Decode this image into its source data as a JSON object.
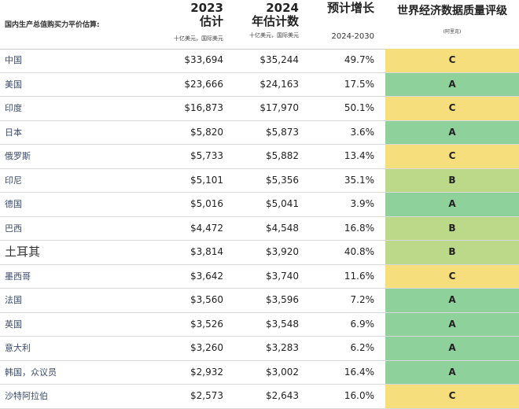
{
  "header": {
    "country_label": "国内生产总值购买力平价估算:",
    "col2023_year": "2023",
    "col2023_title": "估计",
    "col2023_unit": "十亿美元，国际美元",
    "col2024_year": "2024",
    "col2024_title": "年估计数",
    "col2024_unit": "十亿美元，国际美元",
    "growth_title": "预计增长",
    "growth_range": "2024-2030",
    "rating_title": "世界经济数据质量评级",
    "rating_note": "(阿里克)"
  },
  "colors": {
    "C": "#f6de7c",
    "A": "#8fd19b",
    "B": "#bcd98a"
  },
  "rows": [
    {
      "name": "中国",
      "v2023": "$33,694",
      "v2024": "$35,244",
      "growth": "49.7%",
      "grade": "C"
    },
    {
      "name": "美国",
      "v2023": "$23,666",
      "v2024": "$24,163",
      "growth": "17.5%",
      "grade": "A"
    },
    {
      "name": "印度",
      "v2023": "$16,873",
      "v2024": "$17,970",
      "growth": "50.1%",
      "grade": "C"
    },
    {
      "name": "日本",
      "v2023": "$5,820",
      "v2024": "$5,873",
      "growth": "3.6%",
      "grade": "A"
    },
    {
      "name": "俄罗斯",
      "v2023": "$5,733",
      "v2024": "$5,882",
      "growth": "13.4%",
      "grade": "C"
    },
    {
      "name": "印尼",
      "v2023": "$5,101",
      "v2024": "$5,356",
      "growth": "35.1%",
      "grade": "B"
    },
    {
      "name": "德国",
      "v2023": "$5,016",
      "v2024": "$5,041",
      "growth": "3.9%",
      "grade": "A"
    },
    {
      "name": "巴西",
      "v2023": "$4,472",
      "v2024": "$4,548",
      "growth": "16.8%",
      "grade": "B"
    },
    {
      "name": "土耳其",
      "v2023": "$3,814",
      "v2024": "$3,920",
      "growth": "40.8%",
      "grade": "B"
    },
    {
      "name": "墨西哥",
      "v2023": "$3,642",
      "v2024": "$3,740",
      "growth": "11.6%",
      "grade": "C"
    },
    {
      "name": "法国",
      "v2023": "$3,560",
      "v2024": "$3,596",
      "growth": "7.2%",
      "grade": "A"
    },
    {
      "name": "英国",
      "v2023": "$3,526",
      "v2024": "$3,548",
      "growth": "6.9%",
      "grade": "A"
    },
    {
      "name": "意大利",
      "v2023": "$3,260",
      "v2024": "$3,283",
      "growth": "6.2%",
      "grade": "A"
    },
    {
      "name": "韩国，众议员",
      "v2023": "$2,932",
      "v2024": "$3,002",
      "growth": "16.4%",
      "grade": "A"
    },
    {
      "name": "沙特阿拉伯",
      "v2023": "$2,573",
      "v2024": "$2,643",
      "growth": "16.0%",
      "grade": "C"
    }
  ]
}
